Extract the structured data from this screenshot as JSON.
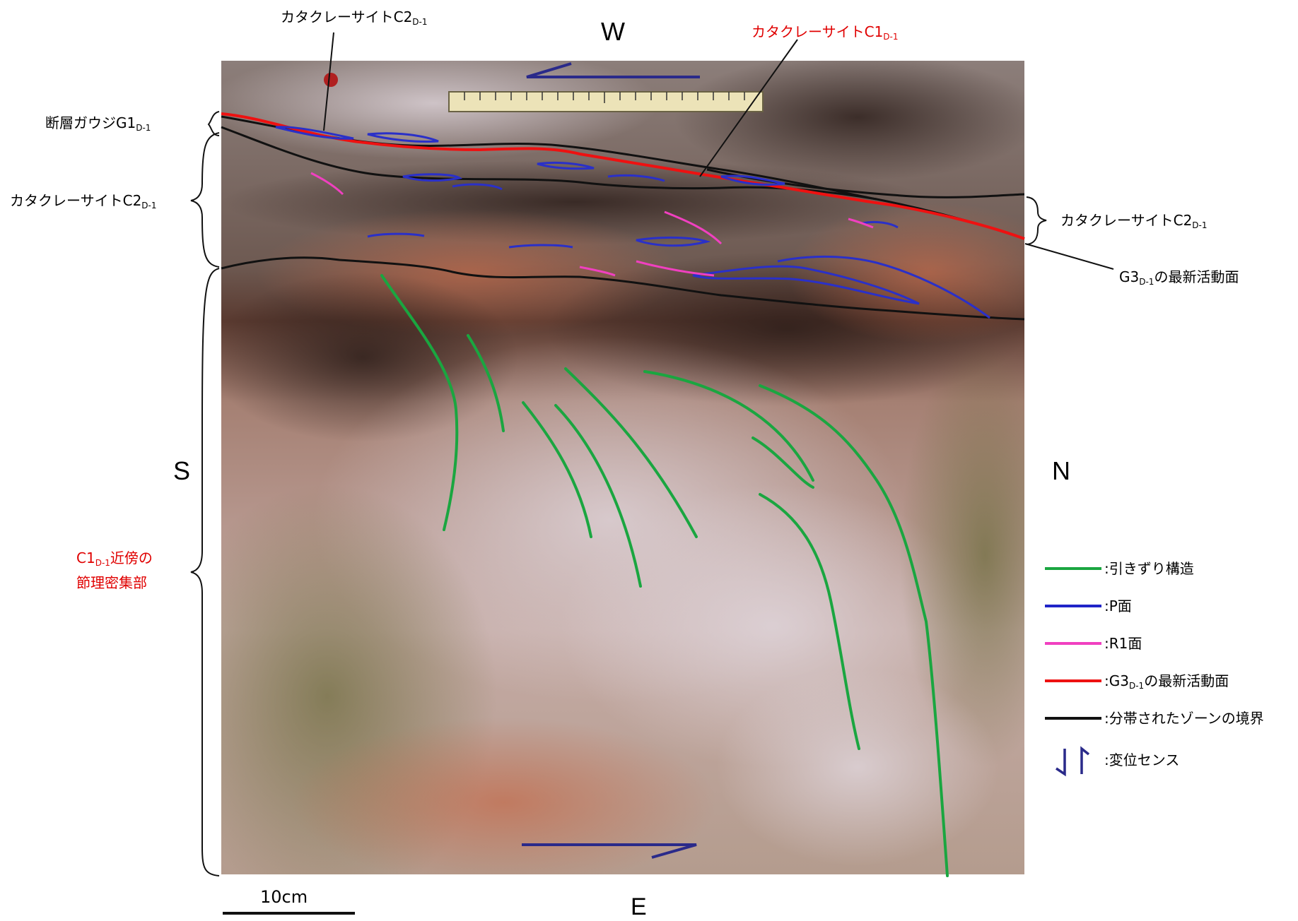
{
  "directions": {
    "west": "W",
    "east": "E",
    "south": "S",
    "north": "N"
  },
  "labels": {
    "c2_top": {
      "main": "カタクレーサイトC2",
      "sub": "D-1"
    },
    "c1_top": {
      "main": "カタクレーサイトC1",
      "sub": "D-1"
    },
    "gouge": {
      "main": "断層ガウジG1",
      "sub": "D-1"
    },
    "c2_left": {
      "main": "カタクレーサイトC2",
      "sub": "D-1"
    },
    "c2_right": {
      "main": "カタクレーサイトC2",
      "sub": "D-1"
    },
    "g3_plane": {
      "pre": "G3",
      "sub": "D-1",
      "post": "の最新活動面"
    },
    "joint_zone": {
      "pre": "C1",
      "sub": "D-1",
      "post": "近傍の",
      "line2": "節理密集部"
    }
  },
  "scale_bar": {
    "label": "10cm"
  },
  "legend": {
    "items": [
      {
        "key": "drag",
        "color": "#1aa640",
        "text": "引きずり構造"
      },
      {
        "key": "p",
        "color": "#1f24c8",
        "text": "P面"
      },
      {
        "key": "r1",
        "color": "#f040c0",
        "text": "R1面"
      },
      {
        "key": "g3",
        "color": "#ee1111",
        "pre": "G3",
        "sub": "D-1",
        "post": "の最新活動面"
      },
      {
        "key": "boundary",
        "color": "#111111",
        "text": "分帯されたゾーンの境界"
      },
      {
        "key": "sense",
        "color": "#2a2a8a",
        "text": "変位センス"
      }
    ]
  },
  "colors": {
    "green": "#1aa640",
    "blue": "#1f24c8",
    "pink": "#f040c0",
    "red": "#ee1111",
    "black": "#111111",
    "rock": "#b59b94"
  }
}
